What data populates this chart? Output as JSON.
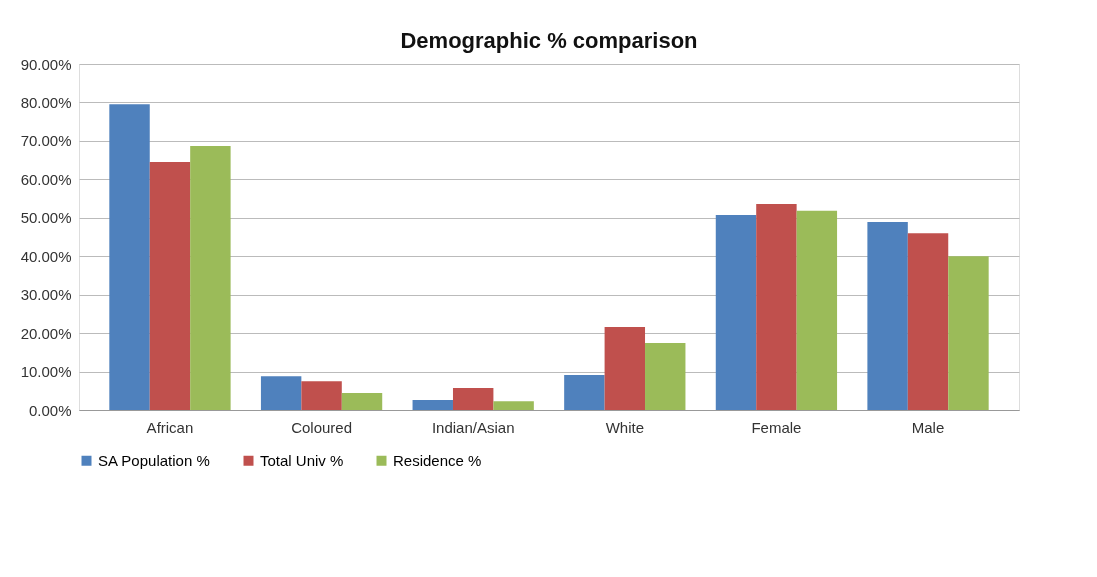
{
  "chart_data": {
    "type": "bar",
    "title": "Demographic % comparison",
    "categories": [
      "African",
      "Coloured",
      "Indian/Asian",
      "White",
      "Female",
      "Male"
    ],
    "series": [
      {
        "name": "SA Population %",
        "color": "#4f81bd",
        "values": [
          79.5,
          8.8,
          2.6,
          9.1,
          50.7,
          48.9
        ]
      },
      {
        "name": "Total Univ %",
        "color": "#c0504d",
        "values": [
          64.5,
          7.5,
          5.7,
          21.6,
          53.6,
          46.0
        ]
      },
      {
        "name": "Residence %",
        "color": "#9bbb59",
        "values": [
          68.7,
          4.4,
          2.3,
          17.4,
          51.8,
          40.0
        ]
      }
    ],
    "ylim": [
      0,
      90
    ],
    "yticks": [
      {
        "value": 0,
        "label": "0.00%"
      },
      {
        "value": 10,
        "label": "10.00%"
      },
      {
        "value": 20,
        "label": "20.00%"
      },
      {
        "value": 30,
        "label": "30.00%"
      },
      {
        "value": 40,
        "label": "40.00%"
      },
      {
        "value": 50,
        "label": "50.00%"
      },
      {
        "value": 60,
        "label": "60.00%"
      },
      {
        "value": 70,
        "label": "70.00%"
      },
      {
        "value": 80,
        "label": "80.00%"
      },
      {
        "value": 90,
        "label": "90.00%"
      }
    ],
    "grid": "y",
    "legend": "bottom"
  }
}
